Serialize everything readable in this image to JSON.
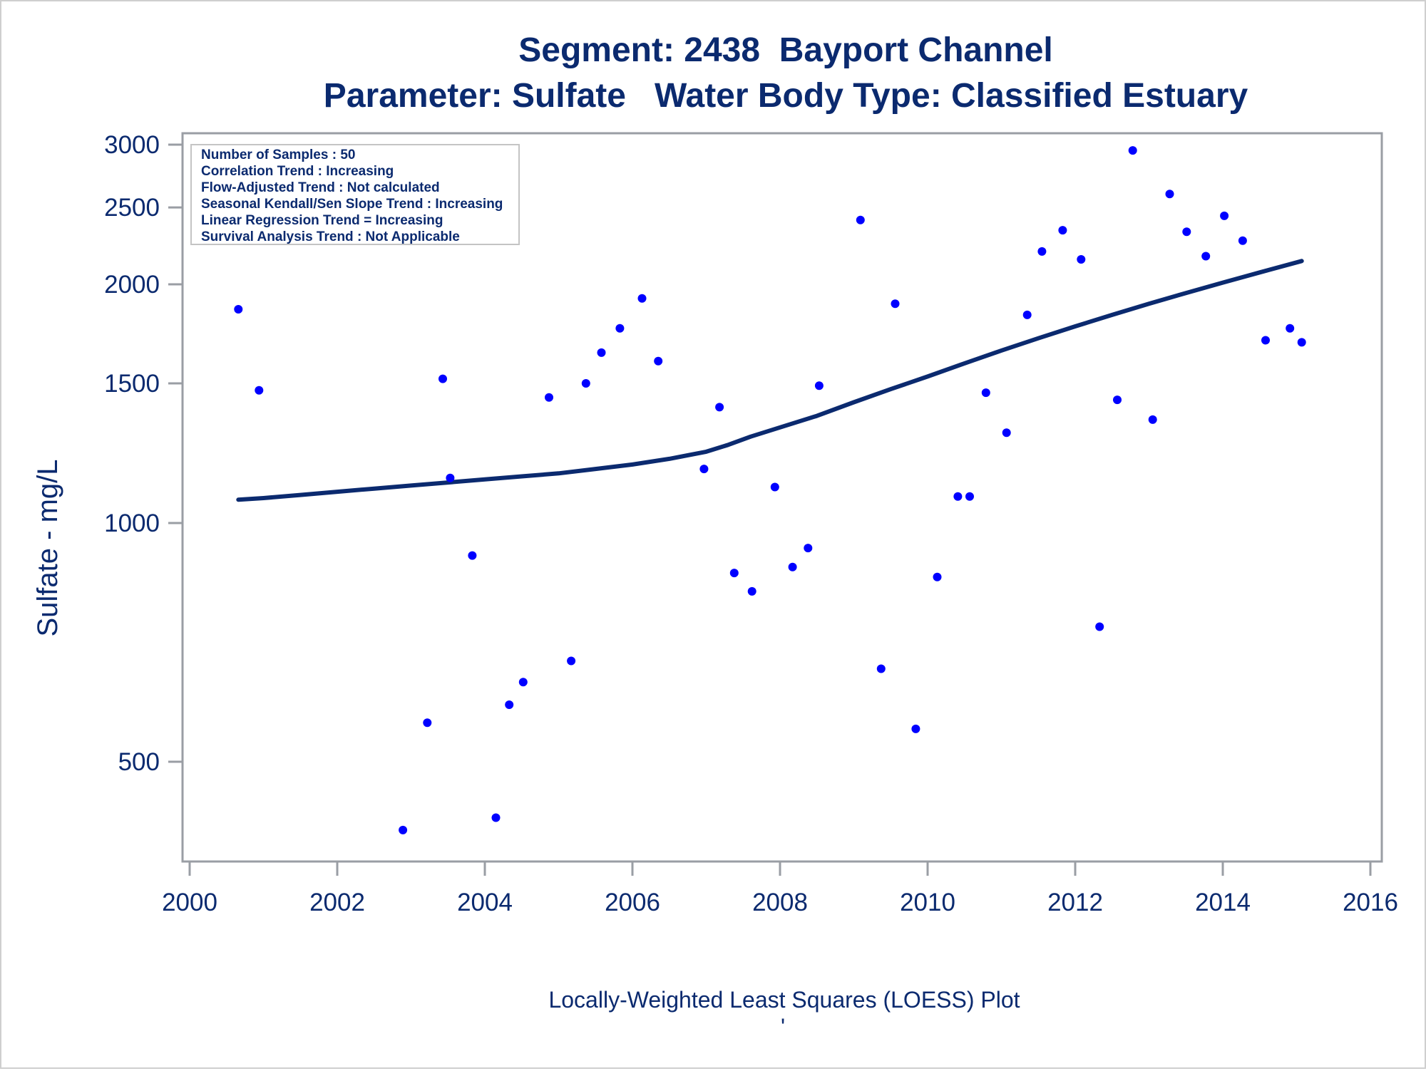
{
  "colors": {
    "text": "#0b2a6f",
    "points": "#0000ff",
    "curve": "#0b2a6f",
    "frame": "#9a9ea4"
  },
  "chart_data": {
    "type": "scatter",
    "title": "Segment: 2438  Bayport Channel",
    "subtitle": "Parameter: Sulfate   Water Body Type: Classified Estuary",
    "xlabel": "",
    "ylabel": "Sulfate - mg/L",
    "footnote": "Locally-Weighted Least Squares (LOESS) Plot",
    "footnote2": "'",
    "y_scale": "log",
    "xlim": [
      2000,
      2016
    ],
    "ylim": [
      410,
      3100
    ],
    "x_ticks": [
      2000,
      2002,
      2004,
      2006,
      2008,
      2010,
      2012,
      2014,
      2016
    ],
    "y_ticks": [
      500,
      1000,
      1500,
      2000,
      2500,
      3000
    ],
    "grid": false,
    "legend": "none",
    "stats_box": {
      "position": "top-left",
      "lines": [
        "Number of Samples : 50",
        "Correlation Trend : Increasing",
        "Flow-Adjusted Trend : Not calculated",
        "Seasonal Kendall/Sen Slope Trend : Increasing",
        "Linear Regression Trend = Increasing",
        "Survival Analysis Trend : Not Applicable"
      ]
    },
    "series": [
      {
        "kind": "points",
        "x": [
          2000.66,
          2000.94,
          2002.89,
          2003.22,
          2003.43,
          2003.53,
          2003.83,
          2004.15,
          2004.33,
          2004.52,
          2004.87,
          2005.17,
          2005.37,
          2005.58,
          2005.83,
          2006.13,
          2006.35,
          2006.97,
          2007.18,
          2007.38,
          2007.62,
          2007.93,
          2008.17,
          2008.38,
          2008.53,
          2009.09,
          2009.37,
          2009.56,
          2009.84,
          2010.13,
          2010.41,
          2010.57,
          2010.79,
          2011.07,
          2011.35,
          2011.55,
          2011.83,
          2012.08,
          2012.33,
          2012.57,
          2012.78,
          2013.05,
          2013.28,
          2013.51,
          2013.77,
          2014.02,
          2014.27,
          2014.58,
          2014.91,
          2015.07
        ],
        "y": [
          1860,
          1470,
          410,
          560,
          1520,
          1140,
          910,
          425,
          590,
          630,
          1440,
          670,
          1500,
          1640,
          1760,
          1920,
          1600,
          1170,
          1400,
          865,
          820,
          1110,
          880,
          930,
          1490,
          2410,
          655,
          1890,
          550,
          855,
          1080,
          1080,
          1460,
          1300,
          1830,
          2200,
          2340,
          2150,
          740,
          1430,
          2950,
          1350,
          2600,
          2330,
          2170,
          2440,
          2270,
          1700,
          1760,
          1690
        ]
      },
      {
        "kind": "loess",
        "x": [
          2000.66,
          2001.0,
          2001.5,
          2002.0,
          2002.5,
          2003.0,
          2003.5,
          2004.0,
          2004.5,
          2005.0,
          2005.5,
          2006.0,
          2006.5,
          2007.0,
          2007.3,
          2007.6,
          2008.0,
          2008.5,
          2009.0,
          2009.5,
          2010.0,
          2010.5,
          2011.0,
          2011.5,
          2012.0,
          2012.5,
          2013.0,
          2013.5,
          2014.0,
          2014.5,
          2015.07
        ],
        "y": [
          1070,
          1075,
          1085,
          1095,
          1105,
          1115,
          1125,
          1135,
          1145,
          1155,
          1170,
          1185,
          1205,
          1230,
          1255,
          1285,
          1320,
          1365,
          1420,
          1475,
          1530,
          1590,
          1650,
          1710,
          1770,
          1830,
          1890,
          1950,
          2010,
          2070,
          2140
        ]
      }
    ]
  }
}
